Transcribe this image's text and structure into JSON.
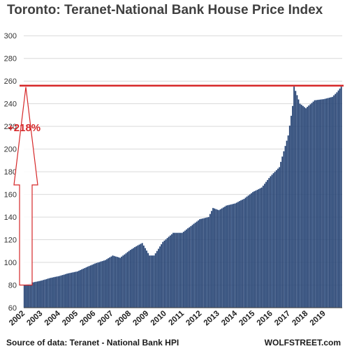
{
  "title": "Toronto: Teranet-National Bank House Price Index",
  "source": "Source of data: Teranet - National Bank HPI",
  "watermark": "WOLFSTREET.com",
  "colors": {
    "bar": "#1f3864",
    "bar_edge": "#4a6fa5",
    "reference_line": "#d62728",
    "arrow": "#d62728",
    "annotation": "#d62728",
    "grid": "#d9d9d9"
  },
  "chart_data": {
    "type": "bar",
    "title": "Toronto: Teranet-National Bank House Price Index",
    "xlabel": "",
    "ylabel": "",
    "ylim": [
      60,
      310
    ],
    "yticks": [
      60,
      80,
      100,
      120,
      140,
      160,
      180,
      200,
      220,
      240,
      260,
      280,
      300
    ],
    "grid": true,
    "frequency": "monthly",
    "x_tick_labels": [
      "2002",
      "2003",
      "2004",
      "2005",
      "2006",
      "2007",
      "2008",
      "2009",
      "2010",
      "2011",
      "2012",
      "2013",
      "2014",
      "2015",
      "2016",
      "2017",
      "2018",
      "2019"
    ],
    "anchors": [
      [
        "2002-01",
        80
      ],
      [
        "2002-06",
        82
      ],
      [
        "2003-01",
        84
      ],
      [
        "2003-06",
        86
      ],
      [
        "2004-01",
        88
      ],
      [
        "2004-06",
        90
      ],
      [
        "2005-01",
        92
      ],
      [
        "2005-06",
        95
      ],
      [
        "2006-01",
        99
      ],
      [
        "2006-08",
        102
      ],
      [
        "2007-01",
        106
      ],
      [
        "2007-06",
        104
      ],
      [
        "2008-01",
        111
      ],
      [
        "2008-06",
        115
      ],
      [
        "2008-09",
        117
      ],
      [
        "2009-02",
        106
      ],
      [
        "2009-05",
        106
      ],
      [
        "2009-11",
        118
      ],
      [
        "2010-06",
        126
      ],
      [
        "2010-12",
        126
      ],
      [
        "2011-06",
        132
      ],
      [
        "2011-12",
        138
      ],
      [
        "2012-06",
        140
      ],
      [
        "2012-09",
        148
      ],
      [
        "2013-01",
        146
      ],
      [
        "2013-06",
        150
      ],
      [
        "2013-12",
        152
      ],
      [
        "2014-06",
        156
      ],
      [
        "2014-12",
        162
      ],
      [
        "2015-06",
        166
      ],
      [
        "2015-12",
        176
      ],
      [
        "2016-06",
        184
      ],
      [
        "2016-12",
        212
      ],
      [
        "2017-03",
        238
      ],
      [
        "2017-04",
        255
      ],
      [
        "2017-08",
        240
      ],
      [
        "2017-12",
        236
      ],
      [
        "2018-06",
        243
      ],
      [
        "2018-12",
        244
      ],
      [
        "2019-06",
        246
      ],
      [
        "2019-09",
        250
      ],
      [
        "2019-12",
        255
      ]
    ],
    "reference_line": {
      "value": 256
    },
    "annotation": {
      "text": "+218%",
      "from": 80,
      "to": 256
    }
  }
}
